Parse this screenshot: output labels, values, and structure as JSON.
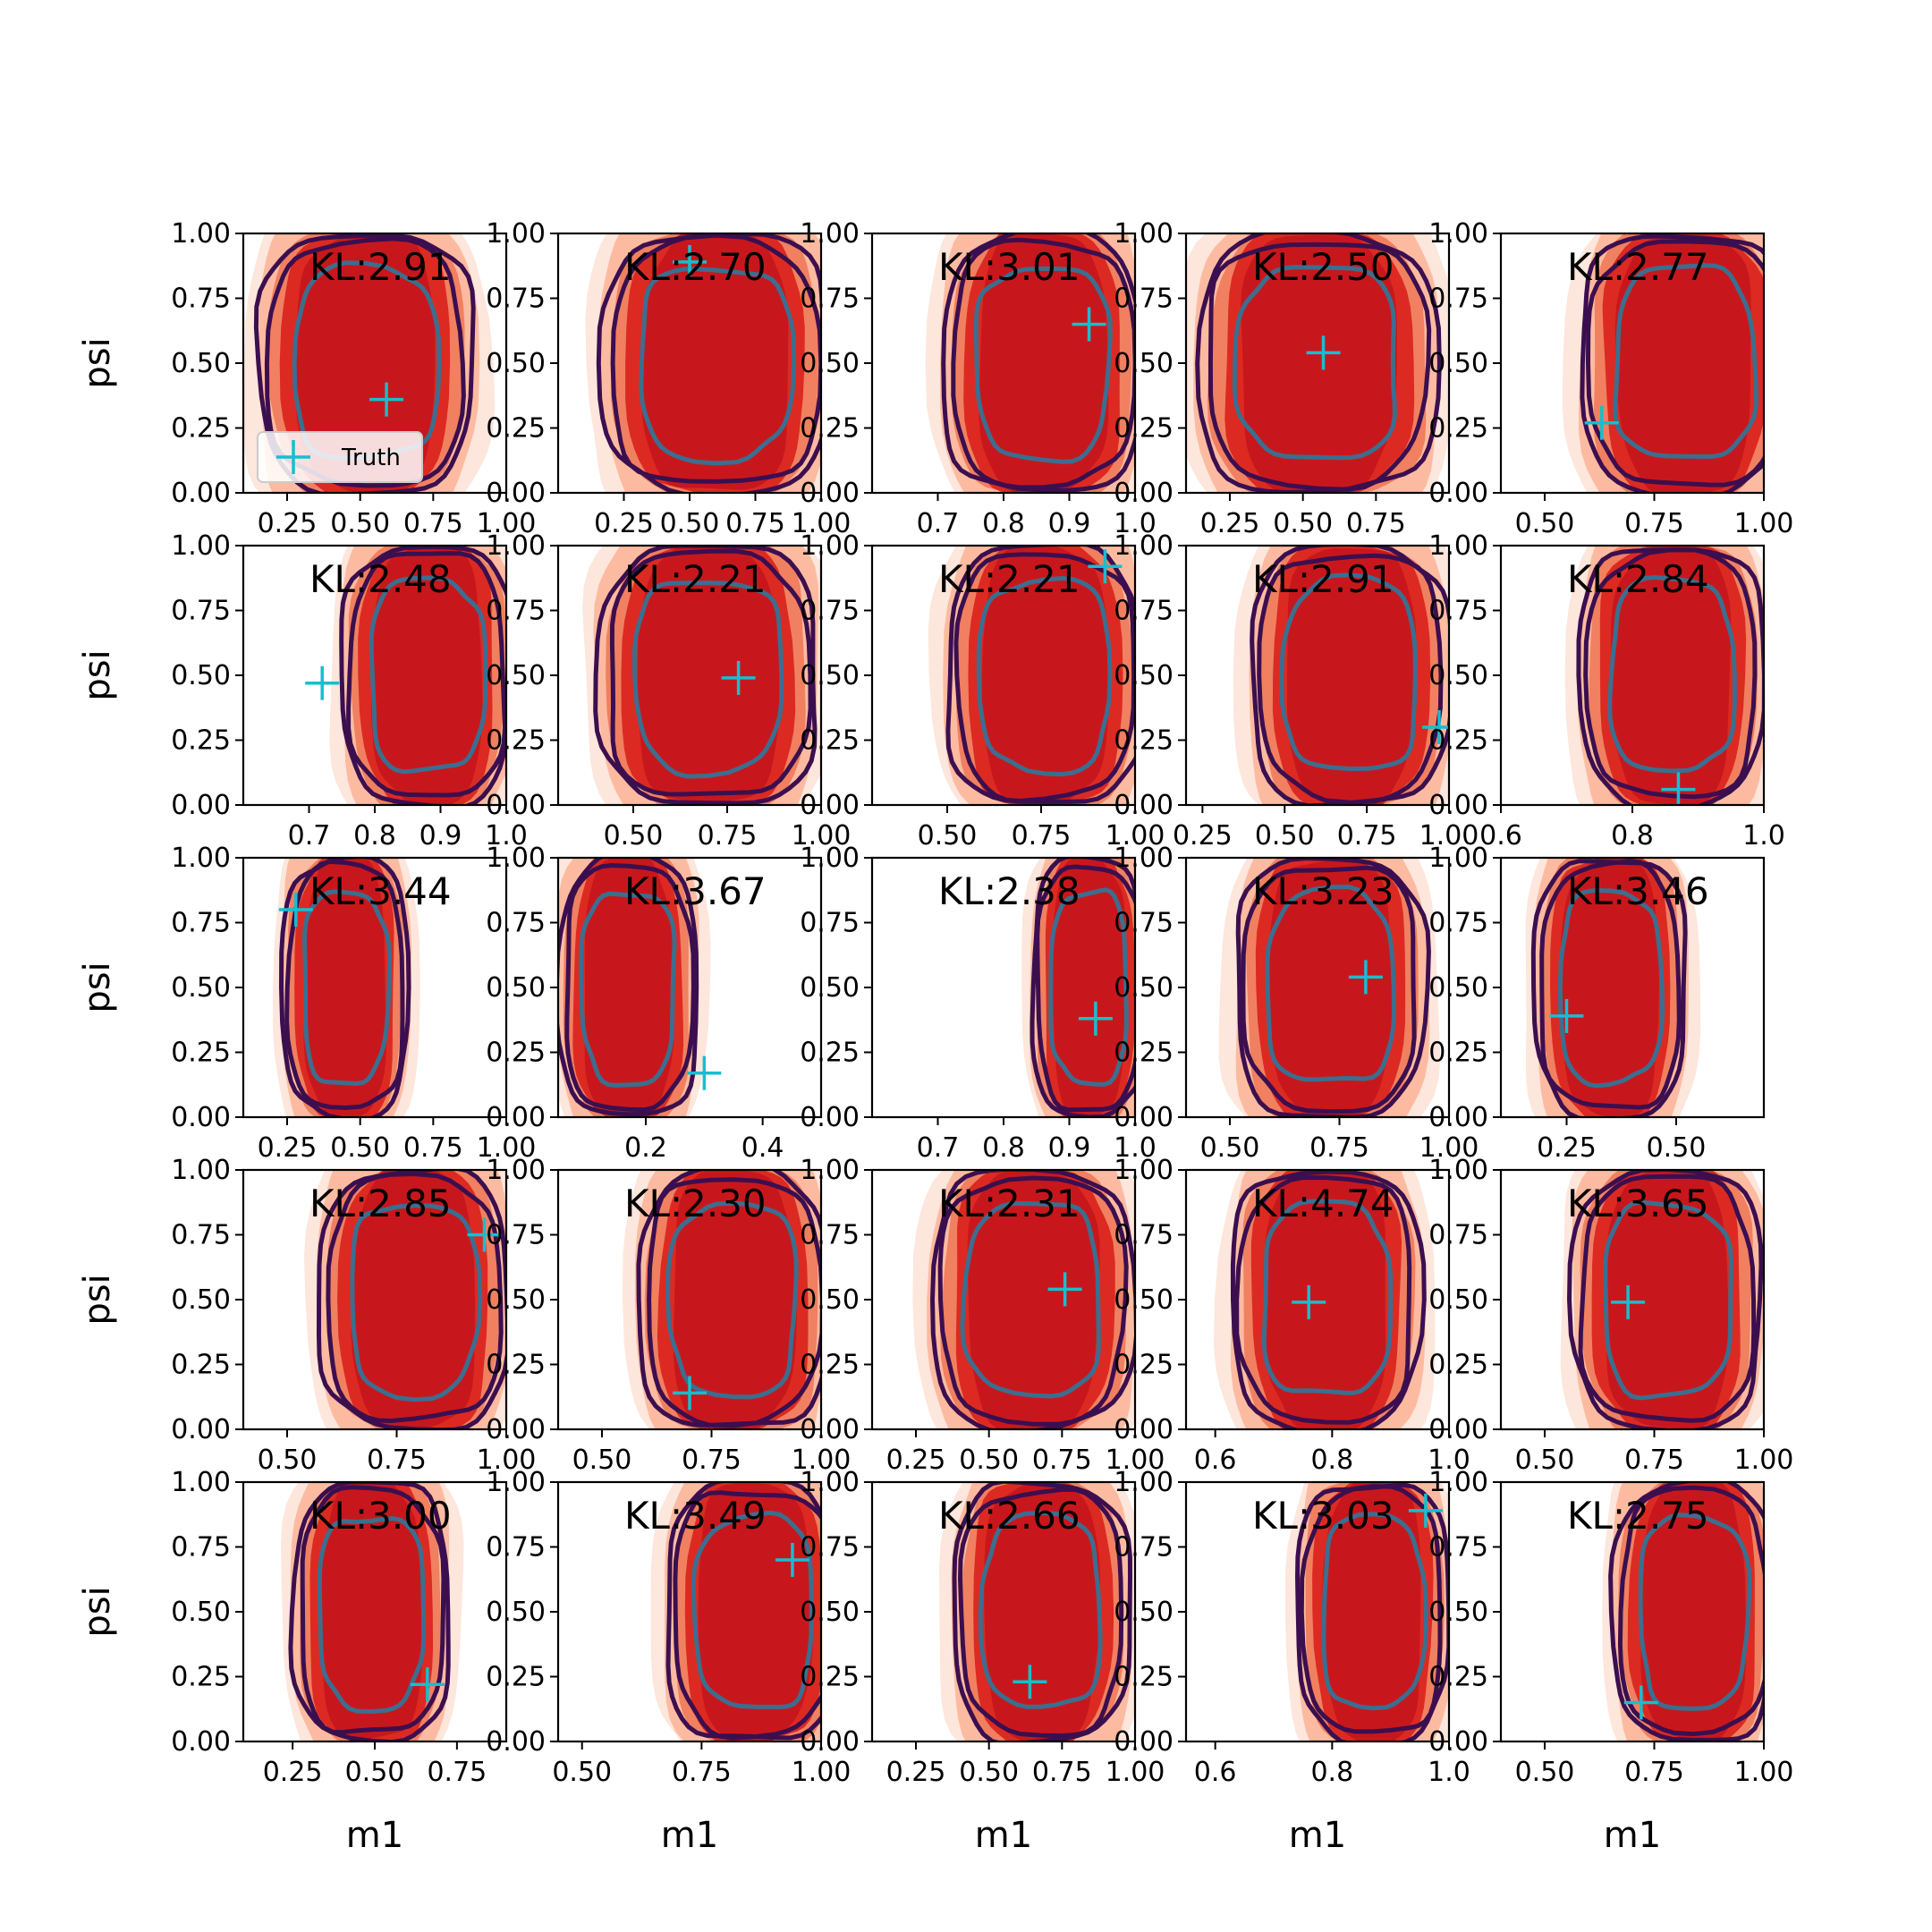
{
  "chart_data": {
    "type": "contour-grid",
    "rows": 5,
    "cols": 5,
    "xlabel": "m1",
    "ylabel": "psi",
    "ylim": [
      0,
      1
    ],
    "yticks": [
      "0.00",
      "0.25",
      "0.50",
      "0.75",
      "1.00"
    ],
    "legend": {
      "label": "Truth",
      "placement": "lower-left",
      "panel": 0
    },
    "colors": {
      "truth": "#17becf",
      "fill_levels": [
        "#fde6dc",
        "#fcbba1",
        "#f08060",
        "#dc2a22",
        "#c8171c"
      ],
      "outer_contour": "#3b0f4f",
      "inner_contour": "#3c6e8f"
    },
    "panels": [
      {
        "kl": "KL:2.91",
        "xlim": [
          0.1,
          1.0
        ],
        "xticks": [
          {
            "v": 0.25,
            "t": "0.25"
          },
          {
            "v": 0.5,
            "t": "0.50"
          },
          {
            "v": 0.75,
            "t": "0.75"
          },
          {
            "v": 1.0,
            "t": "1.00"
          }
        ],
        "truth": [
          0.59,
          0.36
        ],
        "center": [
          0.52,
          0.5
        ],
        "half_width": 0.34,
        "fill_left_extent": 1.0
      },
      {
        "kl": "KL:2.70",
        "xlim": [
          0.0,
          1.0
        ],
        "xticks": [
          {
            "v": 0.25,
            "t": "0.25"
          },
          {
            "v": 0.5,
            "t": "0.50"
          },
          {
            "v": 0.75,
            "t": "0.75"
          },
          {
            "v": 1.0,
            "t": "1.00"
          }
        ],
        "truth": [
          0.5,
          0.89
        ],
        "center": [
          0.6,
          0.5
        ],
        "half_width": 0.4,
        "fill_left_extent": 1.0
      },
      {
        "kl": "KL:3.01",
        "xlim": [
          0.6,
          1.0
        ],
        "xticks": [
          {
            "v": 0.7,
            "t": "0.7"
          },
          {
            "v": 0.8,
            "t": "0.8"
          },
          {
            "v": 0.9,
            "t": "0.9"
          },
          {
            "v": 1.0,
            "t": "1.0"
          }
        ],
        "truth": [
          0.93,
          0.65
        ],
        "center": [
          0.86,
          0.5
        ],
        "half_width": 0.14,
        "fill_left_extent": 1.0
      },
      {
        "kl": "KL:2.50",
        "xlim": [
          0.1,
          1.0
        ],
        "xticks": [
          {
            "v": 0.25,
            "t": "0.25"
          },
          {
            "v": 0.5,
            "t": "0.50"
          },
          {
            "v": 0.75,
            "t": "0.75"
          }
        ],
        "truth": [
          0.57,
          0.54
        ],
        "center": [
          0.55,
          0.5
        ],
        "half_width": 0.38,
        "fill_left_extent": 1.0
      },
      {
        "kl": "KL:2.77",
        "xlim": [
          0.4,
          1.0
        ],
        "xticks": [
          {
            "v": 0.5,
            "t": "0.50"
          },
          {
            "v": 0.75,
            "t": "0.75"
          },
          {
            "v": 1.0,
            "t": "1.00"
          }
        ],
        "truth": [
          0.63,
          0.27
        ],
        "center": [
          0.82,
          0.5
        ],
        "half_width": 0.22,
        "fill_left_extent": 1.0
      },
      {
        "kl": "KL:2.48",
        "xlim": [
          0.6,
          1.0
        ],
        "xticks": [
          {
            "v": 0.7,
            "t": "0.7"
          },
          {
            "v": 0.8,
            "t": "0.8"
          },
          {
            "v": 0.9,
            "t": "0.9"
          },
          {
            "v": 1.0,
            "t": "1.0"
          }
        ],
        "truth": [
          0.72,
          0.47
        ],
        "center": [
          0.88,
          0.5
        ],
        "half_width": 0.12,
        "fill_left_extent": 1.0
      },
      {
        "kl": "KL:2.21",
        "xlim": [
          0.3,
          1.0
        ],
        "xticks": [
          {
            "v": 0.5,
            "t": "0.50"
          },
          {
            "v": 0.75,
            "t": "0.75"
          },
          {
            "v": 1.0,
            "t": "1.00"
          }
        ],
        "truth": [
          0.78,
          0.49
        ],
        "center": [
          0.7,
          0.5
        ],
        "half_width": 0.27,
        "fill_left_extent": 1.0
      },
      {
        "kl": "KL:2.21",
        "xlim": [
          0.3,
          1.0
        ],
        "xticks": [
          {
            "v": 0.5,
            "t": "0.50"
          },
          {
            "v": 0.75,
            "t": "0.75"
          },
          {
            "v": 1.0,
            "t": "1.00"
          }
        ],
        "truth": [
          0.92,
          0.92
        ],
        "center": [
          0.76,
          0.5
        ],
        "half_width": 0.24,
        "fill_left_extent": 1.0
      },
      {
        "kl": "KL:2.91",
        "xlim": [
          0.2,
          1.0
        ],
        "xticks": [
          {
            "v": 0.25,
            "t": "0.25"
          },
          {
            "v": 0.5,
            "t": "0.50"
          },
          {
            "v": 0.75,
            "t": "0.75"
          },
          {
            "v": 1.0,
            "t": "1.00"
          }
        ],
        "truth": [
          0.97,
          0.3
        ],
        "center": [
          0.7,
          0.5
        ],
        "half_width": 0.28,
        "fill_left_extent": 1.0
      },
      {
        "kl": "KL:2.84",
        "xlim": [
          0.6,
          1.0
        ],
        "xticks": [
          {
            "v": 0.6,
            "t": "0.6"
          },
          {
            "v": 0.8,
            "t": "0.8"
          },
          {
            "v": 1.0,
            "t": "1.0"
          }
        ],
        "truth": [
          0.87,
          0.06
        ],
        "center": [
          0.86,
          0.5
        ],
        "half_width": 0.13,
        "fill_left_extent": 1.0
      },
      {
        "kl": "KL:3.44",
        "xlim": [
          0.1,
          1.0
        ],
        "xticks": [
          {
            "v": 0.25,
            "t": "0.25"
          },
          {
            "v": 0.5,
            "t": "0.50"
          },
          {
            "v": 0.75,
            "t": "0.75"
          },
          {
            "v": 1.0,
            "t": "1.00"
          }
        ],
        "truth": [
          0.28,
          0.8
        ],
        "center": [
          0.45,
          0.5
        ],
        "half_width": 0.2,
        "fill_left_extent": 1.0
      },
      {
        "kl": "KL:3.67",
        "xlim": [
          0.05,
          0.5
        ],
        "xticks": [
          {
            "v": 0.2,
            "t": "0.2"
          },
          {
            "v": 0.4,
            "t": "0.4"
          }
        ],
        "truth": [
          0.3,
          0.17
        ],
        "center": [
          0.17,
          0.5
        ],
        "half_width": 0.11,
        "fill_left_extent": 1.0
      },
      {
        "kl": "KL:2.38",
        "xlim": [
          0.6,
          1.0
        ],
        "xticks": [
          {
            "v": 0.7,
            "t": "0.7"
          },
          {
            "v": 0.8,
            "t": "0.8"
          },
          {
            "v": 0.9,
            "t": "0.9"
          },
          {
            "v": 1.0,
            "t": "1.0"
          }
        ],
        "truth": [
          0.94,
          0.38
        ],
        "center": [
          0.93,
          0.5
        ],
        "half_width": 0.08,
        "fill_left_extent": 1.0
      },
      {
        "kl": "KL:3.23",
        "xlim": [
          0.4,
          1.0
        ],
        "xticks": [
          {
            "v": 0.5,
            "t": "0.50"
          },
          {
            "v": 0.75,
            "t": "0.75"
          },
          {
            "v": 1.0,
            "t": "1.00"
          }
        ],
        "truth": [
          0.81,
          0.54
        ],
        "center": [
          0.73,
          0.5
        ],
        "half_width": 0.2,
        "fill_left_extent": 1.0
      },
      {
        "kl": "KL:3.46",
        "xlim": [
          0.1,
          0.7
        ],
        "xticks": [
          {
            "v": 0.25,
            "t": "0.25"
          },
          {
            "v": 0.5,
            "t": "0.50"
          }
        ],
        "truth": [
          0.25,
          0.39
        ],
        "center": [
          0.35,
          0.5
        ],
        "half_width": 0.16,
        "fill_left_extent": 1.0
      },
      {
        "kl": "KL:2.85",
        "xlim": [
          0.4,
          1.0
        ],
        "xticks": [
          {
            "v": 0.5,
            "t": "0.50"
          },
          {
            "v": 0.75,
            "t": "0.75"
          },
          {
            "v": 1.0,
            "t": "1.00"
          }
        ],
        "truth": [
          0.95,
          0.75
        ],
        "center": [
          0.79,
          0.5
        ],
        "half_width": 0.2,
        "fill_left_extent": 1.0
      },
      {
        "kl": "KL:2.30",
        "xlim": [
          0.4,
          1.0
        ],
        "xticks": [
          {
            "v": 0.5,
            "t": "0.50"
          },
          {
            "v": 0.75,
            "t": "0.75"
          },
          {
            "v": 1.0,
            "t": "1.00"
          }
        ],
        "truth": [
          0.7,
          0.14
        ],
        "center": [
          0.8,
          0.5
        ],
        "half_width": 0.2,
        "fill_left_extent": 1.0
      },
      {
        "kl": "KL:2.31",
        "xlim": [
          0.1,
          1.0
        ],
        "xticks": [
          {
            "v": 0.25,
            "t": "0.25"
          },
          {
            "v": 0.5,
            "t": "0.50"
          },
          {
            "v": 0.75,
            "t": "0.75"
          },
          {
            "v": 1.0,
            "t": "1.00"
          }
        ],
        "truth": [
          0.76,
          0.54
        ],
        "center": [
          0.65,
          0.5
        ],
        "half_width": 0.32,
        "fill_left_extent": 1.0
      },
      {
        "kl": "KL:4.74",
        "xlim": [
          0.55,
          1.0
        ],
        "xticks": [
          {
            "v": 0.6,
            "t": "0.6"
          },
          {
            "v": 0.8,
            "t": "0.8"
          },
          {
            "v": 1.0,
            "t": "1.0"
          }
        ],
        "truth": [
          0.76,
          0.49
        ],
        "center": [
          0.79,
          0.5
        ],
        "half_width": 0.15,
        "fill_left_extent": 1.0
      },
      {
        "kl": "KL:3.65",
        "xlim": [
          0.4,
          1.0
        ],
        "xticks": [
          {
            "v": 0.5,
            "t": "0.50"
          },
          {
            "v": 0.75,
            "t": "0.75"
          },
          {
            "v": 1.0,
            "t": "1.00"
          }
        ],
        "truth": [
          0.69,
          0.49
        ],
        "center": [
          0.78,
          0.5
        ],
        "half_width": 0.2,
        "fill_left_extent": 1.0
      },
      {
        "kl": "KL:3.00",
        "xlim": [
          0.1,
          0.9
        ],
        "xticks": [
          {
            "v": 0.25,
            "t": "0.25"
          },
          {
            "v": 0.5,
            "t": "0.50"
          },
          {
            "v": 0.75,
            "t": "0.75"
          }
        ],
        "truth": [
          0.66,
          0.22
        ],
        "center": [
          0.49,
          0.5
        ],
        "half_width": 0.22,
        "fill_left_extent": 1.0
      },
      {
        "kl": "KL:3.49",
        "xlim": [
          0.45,
          1.0
        ],
        "xticks": [
          {
            "v": 0.5,
            "t": "0.50"
          },
          {
            "v": 0.75,
            "t": "0.75"
          },
          {
            "v": 1.0,
            "t": "1.00"
          }
        ],
        "truth": [
          0.94,
          0.7
        ],
        "center": [
          0.86,
          0.5
        ],
        "half_width": 0.17,
        "fill_left_extent": 1.0
      },
      {
        "kl": "KL:2.66",
        "xlim": [
          0.1,
          1.0
        ],
        "xticks": [
          {
            "v": 0.25,
            "t": "0.25"
          },
          {
            "v": 0.5,
            "t": "0.50"
          },
          {
            "v": 0.75,
            "t": "0.75"
          },
          {
            "v": 1.0,
            "t": "1.00"
          }
        ],
        "truth": [
          0.64,
          0.23
        ],
        "center": [
          0.68,
          0.5
        ],
        "half_width": 0.28,
        "fill_left_extent": 1.0
      },
      {
        "kl": "KL:3.03",
        "xlim": [
          0.55,
          1.0
        ],
        "xticks": [
          {
            "v": 0.6,
            "t": "0.6"
          },
          {
            "v": 0.8,
            "t": "0.8"
          },
          {
            "v": 1.0,
            "t": "1.0"
          }
        ],
        "truth": [
          0.96,
          0.89
        ],
        "center": [
          0.87,
          0.5
        ],
        "half_width": 0.12,
        "fill_left_extent": 1.0
      },
      {
        "kl": "KL:2.75",
        "xlim": [
          0.4,
          1.0
        ],
        "xticks": [
          {
            "v": 0.5,
            "t": "0.50"
          },
          {
            "v": 0.75,
            "t": "0.75"
          },
          {
            "v": 1.0,
            "t": "1.00"
          }
        ],
        "truth": [
          0.72,
          0.15
        ],
        "center": [
          0.84,
          0.5
        ],
        "half_width": 0.17,
        "fill_left_extent": 1.0
      }
    ]
  }
}
